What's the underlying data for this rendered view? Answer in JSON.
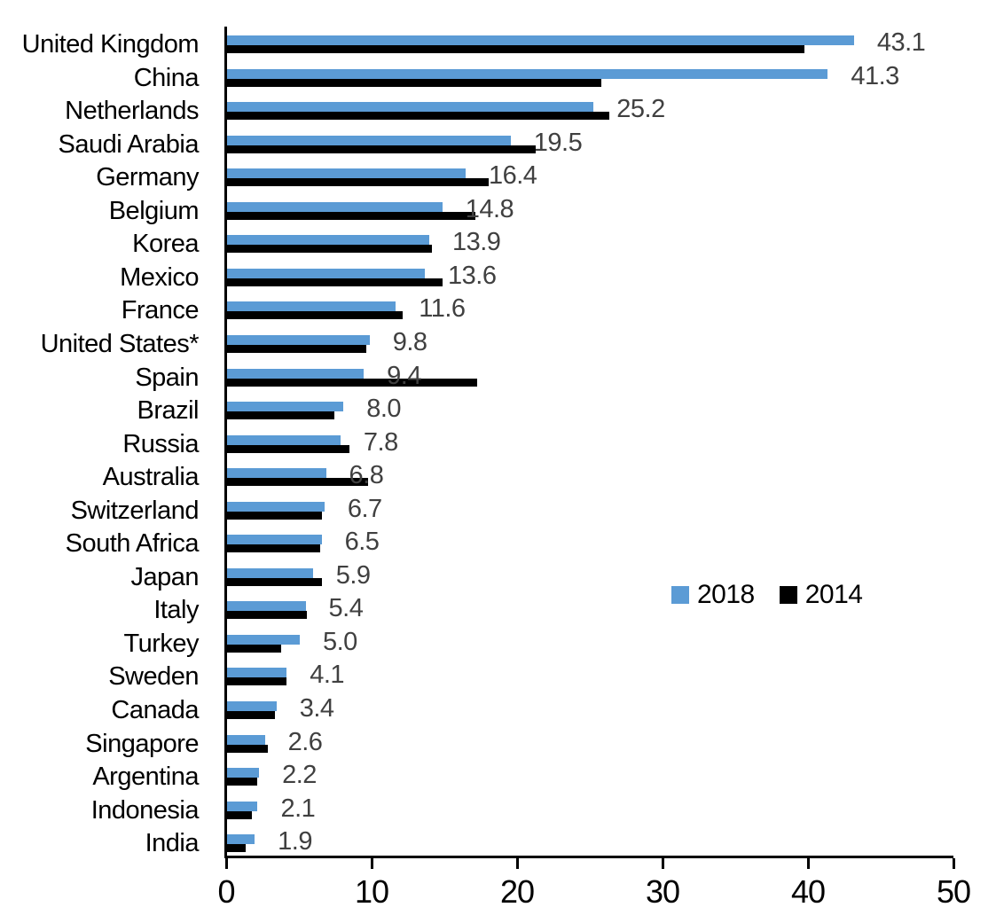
{
  "chart_data": {
    "type": "bar",
    "orientation": "horizontal",
    "title": "",
    "xlabel": "",
    "ylabel": "",
    "xlim": [
      0,
      50
    ],
    "xticks": [
      0,
      10,
      20,
      30,
      40,
      50
    ],
    "xtick_labels": [
      "0",
      "10",
      "20",
      "30",
      "40",
      "50"
    ],
    "grid": false,
    "legend": {
      "position": "center-right",
      "entries": [
        "2018",
        "2014"
      ]
    },
    "categories": [
      "United Kingdom",
      "China",
      "Netherlands",
      "Saudi Arabia",
      "Germany",
      "Belgium",
      "Korea",
      "Mexico",
      "France",
      "United States*",
      "Spain",
      "Brazil",
      "Russia",
      "Australia",
      "Switzerland",
      "South Africa",
      "Japan",
      "Italy",
      "Turkey",
      "Sweden",
      "Canada",
      "Singapore",
      "Argentina",
      "Indonesia",
      "India"
    ],
    "series": [
      {
        "name": "2018",
        "color": "#5B9BD5",
        "values": [
          43.1,
          41.3,
          25.2,
          19.5,
          16.4,
          14.8,
          13.9,
          13.6,
          11.6,
          9.8,
          9.4,
          8.0,
          7.8,
          6.8,
          6.7,
          6.5,
          5.9,
          5.4,
          5.0,
          4.1,
          3.4,
          2.6,
          2.2,
          2.1,
          1.9
        ]
      },
      {
        "name": "2014",
        "color": "#000000",
        "values": [
          39.7,
          25.7,
          26.3,
          21.2,
          18.0,
          17.1,
          14.1,
          14.8,
          12.1,
          9.6,
          17.2,
          7.4,
          8.4,
          9.7,
          6.5,
          6.4,
          6.5,
          5.5,
          3.7,
          4.1,
          3.3,
          2.8,
          2.1,
          1.7,
          1.3
        ]
      }
    ],
    "value_labels": {
      "series": "2018",
      "values": [
        "43.1",
        "41.3",
        "25.2",
        "19.5",
        "16.4",
        "14.8",
        "13.9",
        "13.6",
        "11.6",
        "9.8",
        "9.4",
        "8.0",
        "7.8",
        "6.8",
        "6.7",
        "6.5",
        "5.9",
        "5.4",
        "5.0",
        "4.1",
        "3.4",
        "2.6",
        "2.2",
        "2.1",
        "1.9"
      ]
    }
  },
  "colors": {
    "bar_2018": "#5B9BD5",
    "bar_2014": "#000000",
    "value_label": "#404040",
    "axis": "#000000",
    "background": "#FFFFFF"
  }
}
